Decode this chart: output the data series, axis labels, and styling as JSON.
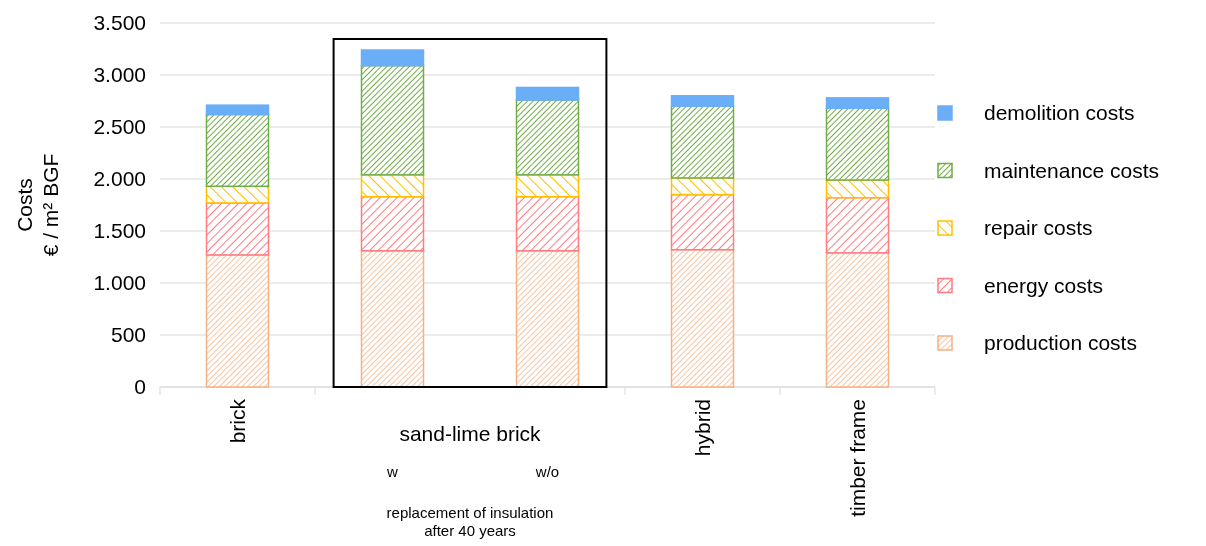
{
  "chart_data": {
    "type": "bar",
    "stacked": true,
    "ylabel": "Costs\n€ / m² BGF",
    "categories": [
      "brick",
      null,
      null,
      "hybrid",
      "timber frame"
    ],
    "series": [
      {
        "name": "production costs",
        "color": "#f4b183",
        "values": [
          1270,
          1310,
          1310,
          1320,
          1290
        ]
      },
      {
        "name": "energy costs",
        "color": "#ff7c80",
        "values": [
          500,
          520,
          520,
          530,
          530
        ]
      },
      {
        "name": "repair costs",
        "color": "#ffc000",
        "values": [
          160,
          210,
          210,
          160,
          170
        ]
      },
      {
        "name": "maintenance costs",
        "color": "#70ad47",
        "values": [
          690,
          1050,
          720,
          690,
          690
        ]
      },
      {
        "name": "demolition costs",
        "color": "#6aaef8",
        "values": [
          90,
          150,
          120,
          100,
          100
        ]
      }
    ],
    "ylim": [
      0,
      3500
    ],
    "yticks": [
      {
        "value": 0,
        "label": "0"
      },
      {
        "value": 500,
        "label": "500"
      },
      {
        "value": 1000,
        "label": "1.000"
      },
      {
        "value": 1500,
        "label": "1.500"
      },
      {
        "value": 2000,
        "label": "2.000"
      },
      {
        "value": 2500,
        "label": "2.500"
      },
      {
        "value": 3000,
        "label": "3.000"
      },
      {
        "value": 3500,
        "label": "3.500"
      }
    ],
    "grid": "y",
    "legend": "right",
    "annotations": [
      "sand-lime brick",
      "w",
      "w/o",
      "replacement of insulation\nafter 40 years"
    ]
  }
}
